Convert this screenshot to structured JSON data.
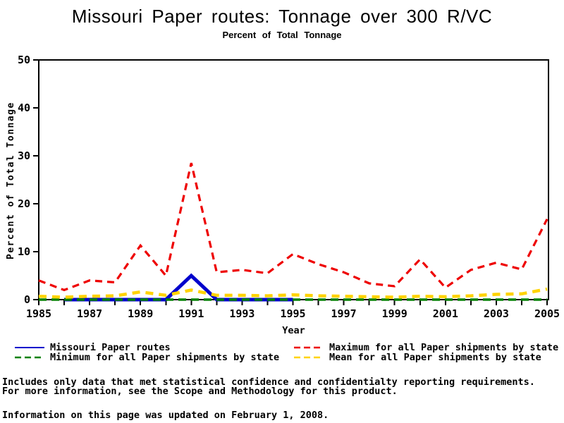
{
  "chart_data": {
    "type": "line",
    "title": "Missouri Paper routes: Tonnage over 300 R/VC",
    "subtitle": "Percent of Total Tonnage",
    "xlabel": "Year",
    "ylabel": "Percent of Total Tonnage",
    "x_range": [
      1985,
      2005
    ],
    "y_range": [
      0,
      50
    ],
    "y_ticks": [
      0,
      10,
      20,
      30,
      40,
      50
    ],
    "x_labeled_ticks": [
      1985,
      1987,
      1989,
      1991,
      1993,
      1995,
      1997,
      1999,
      2001,
      2003,
      2005
    ],
    "x_minor_tick_every_year": true,
    "grid": "off",
    "legend_position": "bottom",
    "frame": "box",
    "years": [
      1985,
      1986,
      1987,
      1988,
      1989,
      1990,
      1991,
      1992,
      1993,
      1994,
      1995,
      1996,
      1997,
      1998,
      1999,
      2000,
      2001,
      2002,
      2003,
      2004,
      2005
    ],
    "series": [
      {
        "name": "Missouri Paper routes",
        "color": "#0000CC",
        "line": "solid",
        "width": 5,
        "values": [
          null,
          0,
          0,
          0,
          0,
          0,
          5,
          0,
          0,
          0,
          0,
          null,
          null,
          null,
          null,
          null,
          null,
          null,
          null,
          null,
          null
        ]
      },
      {
        "name": "Minimum for all Paper shipments by state",
        "color": "#008000",
        "line": "dashed",
        "width": 3.5,
        "values": [
          0,
          0,
          0,
          0,
          0,
          0,
          0,
          0,
          0,
          0,
          0,
          0,
          0,
          0,
          0,
          0,
          0,
          0,
          0,
          0,
          0
        ]
      },
      {
        "name": "Maximum for all Paper shipments by state",
        "color": "#EE0000",
        "line": "dashed",
        "width": 3.2,
        "values": [
          4.0,
          2.0,
          4.0,
          3.6,
          11.3,
          5.0,
          28.5,
          5.7,
          6.2,
          5.5,
          9.5,
          7.4,
          5.7,
          3.4,
          2.8,
          8.4,
          2.5,
          6.2,
          7.7,
          6.3,
          16.8
        ]
      },
      {
        "name": "Mean for all Paper shipments by state",
        "color": "#FFD300",
        "line": "dashed",
        "width": 4.5,
        "values": [
          0.7,
          0.5,
          0.7,
          0.8,
          1.6,
          0.9,
          2.0,
          0.9,
          0.9,
          0.8,
          1.0,
          0.8,
          0.7,
          0.6,
          0.5,
          0.7,
          0.6,
          0.8,
          1.1,
          1.2,
          2.2
        ]
      }
    ]
  },
  "footer": {
    "note_line1": "Includes only data that met statistical confidence and confidentialty reporting requirements.",
    "note_line2": "For more information, see the Scope and Methodology for this product.",
    "updated": "Information on this page was updated on February 1, 2008."
  }
}
